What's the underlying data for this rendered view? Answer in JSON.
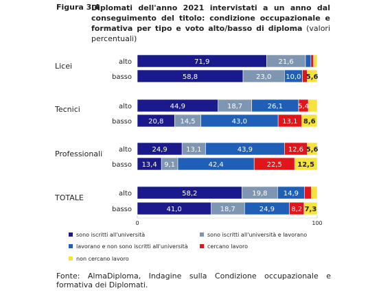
{
  "figure": {
    "label": "Figura 3.4",
    "title_bold": "Diplomati dell'anno 2021 intervistati a un anno dal conseguimento del titolo: condizione occupazionale e formativa per tipo e voto alto/basso di diploma",
    "title_normal": "(valori percentuali)"
  },
  "source": "Fonte: AlmaDiploma, Indagine sulla Condizione occupazionale e formativa dei Diplomati.",
  "chart_data": {
    "type": "bar",
    "orientation": "horizontal",
    "stacked": true,
    "xlim": [
      0,
      100
    ],
    "x_ticks": [
      "0",
      "100"
    ],
    "groups": [
      {
        "name": "Licei",
        "rows": [
          {
            "label": "alto",
            "values": [
              71.9,
              21.6,
              3.0,
              1.5,
              2.0
            ],
            "labels": [
              "71,9",
              "21,6",
              "",
              "",
              ""
            ]
          },
          {
            "label": "basso",
            "values": [
              58.8,
              23.0,
              10.0,
              2.6,
              5.6
            ],
            "labels": [
              "58,8",
              "23,0",
              "10,0",
              "",
              "5,6"
            ]
          }
        ]
      },
      {
        "name": "Tecnici",
        "rows": [
          {
            "label": "alto",
            "values": [
              44.9,
              18.7,
              26.1,
              5.4,
              4.9
            ],
            "labels": [
              "44,9",
              "18,7",
              "26,1",
              "5,4",
              ""
            ]
          },
          {
            "label": "basso",
            "values": [
              20.8,
              14.5,
              43.0,
              13.1,
              8.6
            ],
            "labels": [
              "20,8",
              "14,5",
              "43,0",
              "13,1",
              "8,6"
            ]
          }
        ]
      },
      {
        "name": "Professionali",
        "rows": [
          {
            "label": "alto",
            "values": [
              24.9,
              13.1,
              43.9,
              12.6,
              5.6
            ],
            "labels": [
              "24,9",
              "13,1",
              "43,9",
              "12,6",
              "5,6"
            ]
          },
          {
            "label": "basso",
            "values": [
              13.4,
              9.1,
              42.4,
              22.5,
              12.5
            ],
            "labels": [
              "13,4",
              "9,1",
              "42,4",
              "22,5",
              "12,5"
            ]
          }
        ]
      },
      {
        "name": "TOTALE",
        "rows": [
          {
            "label": "alto",
            "values": [
              58.2,
              19.8,
              14.9,
              3.8,
              3.3
            ],
            "labels": [
              "58,2",
              "19,8",
              "14,9",
              "",
              ""
            ]
          },
          {
            "label": "basso",
            "values": [
              41.0,
              18.7,
              24.9,
              8.2,
              7.3
            ],
            "labels": [
              "41,0",
              "18,7",
              "24,9",
              "8,2",
              "7,3"
            ]
          }
        ]
      }
    ],
    "series": [
      {
        "name": "sono iscritti all'università",
        "color": "#1a1a8c",
        "label_color": "#ffffff"
      },
      {
        "name": "sono iscritti all'università e lavorano",
        "color": "#7f96b2",
        "label_color": "#ffffff"
      },
      {
        "name": "lavorano e non sono iscritti all'università",
        "color": "#1f5fb8",
        "label_color": "#ffffff"
      },
      {
        "name": "cercano lavoro",
        "color": "#e0161b",
        "label_color": "#ffffff"
      },
      {
        "name": "non cercano lavoro",
        "color": "#f5e23a",
        "label_color": "#222222"
      }
    ],
    "legend_position": "bottom"
  }
}
